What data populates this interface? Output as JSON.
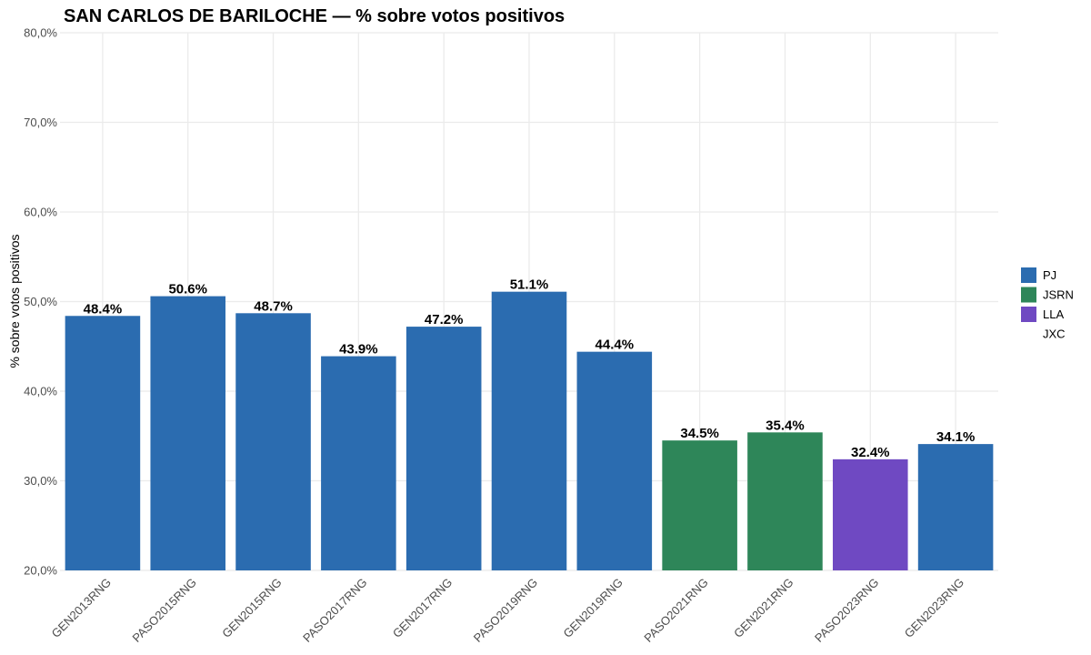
{
  "chart_data": {
    "type": "bar",
    "title": "SAN CARLOS DE BARILOCHE — % sobre votos positivos",
    "xlabel": "",
    "ylabel": "% sobre votos positivos",
    "ylim": [
      20,
      80
    ],
    "yticks": [
      {
        "value": 20,
        "label": "20,0%"
      },
      {
        "value": 30,
        "label": "30,0%"
      },
      {
        "value": 40,
        "label": "40,0%"
      },
      {
        "value": 50,
        "label": "50,0%"
      },
      {
        "value": 60,
        "label": "60,0%"
      },
      {
        "value": 70,
        "label": "70,0%"
      },
      {
        "value": 80,
        "label": "80,0%"
      }
    ],
    "grid": true,
    "legend_position": "right",
    "legend": [
      {
        "name": "PJ",
        "color": "#2b6cb0"
      },
      {
        "name": "JSRN",
        "color": "#2e8659"
      },
      {
        "name": "LLA",
        "color": "#6f49c2"
      },
      {
        "name": "JXC",
        "color": null
      }
    ],
    "bars": [
      {
        "category": "GEN2013RNG",
        "value": 48.4,
        "label": "48.4%",
        "party": "PJ"
      },
      {
        "category": "PASO2015RNG",
        "value": 50.6,
        "label": "50.6%",
        "party": "PJ"
      },
      {
        "category": "GEN2015RNG",
        "value": 48.7,
        "label": "48.7%",
        "party": "PJ"
      },
      {
        "category": "PASO2017RNG",
        "value": 43.9,
        "label": "43.9%",
        "party": "PJ"
      },
      {
        "category": "GEN2017RNG",
        "value": 47.2,
        "label": "47.2%",
        "party": "PJ"
      },
      {
        "category": "PASO2019RNG",
        "value": 51.1,
        "label": "51.1%",
        "party": "PJ"
      },
      {
        "category": "GEN2019RNG",
        "value": 44.4,
        "label": "44.4%",
        "party": "PJ"
      },
      {
        "category": "PASO2021RNG",
        "value": 34.5,
        "label": "34.5%",
        "party": "JSRN"
      },
      {
        "category": "GEN2021RNG",
        "value": 35.4,
        "label": "35.4%",
        "party": "JSRN"
      },
      {
        "category": "PASO2023RNG",
        "value": 32.4,
        "label": "32.4%",
        "party": "LLA"
      },
      {
        "category": "GEN2023RNG",
        "value": 34.1,
        "label": "34.1%",
        "party": "PJ"
      }
    ]
  }
}
